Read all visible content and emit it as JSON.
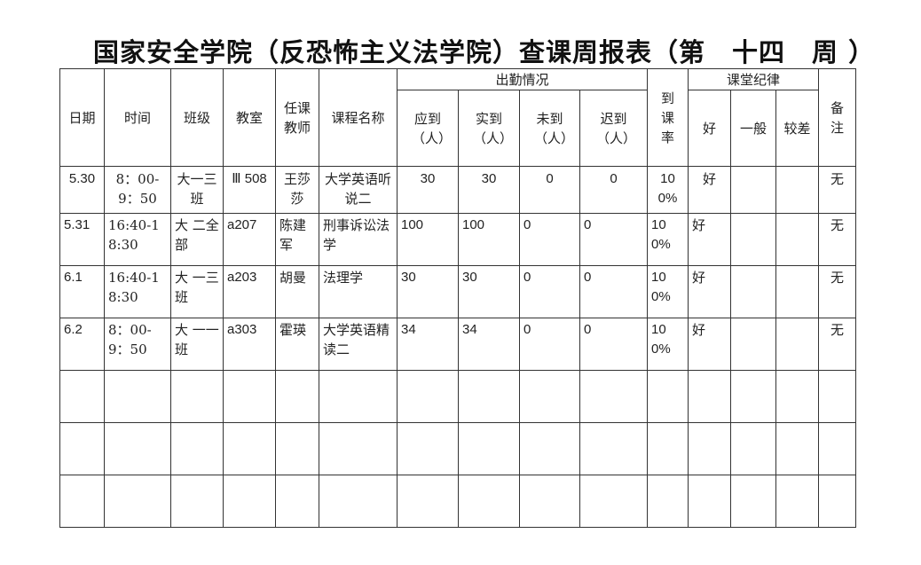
{
  "title": "国家安全学院（反恐怖主义法学院）查课周报表（第　十四　周 ）",
  "headers": {
    "date": "日期",
    "time": "时间",
    "class": "班级",
    "room": "教室",
    "teacher": "任课教师",
    "course": "课程名称",
    "attendance": "出勤情况",
    "expected": "应到（人）",
    "actual": "实到（人）",
    "absent": "未到（人）",
    "late": "迟到（人）",
    "rate": "到课率",
    "discipline": "课堂纪律",
    "good": "好",
    "average": "一般",
    "poor": "较差",
    "remarks": "备注"
  },
  "rows": [
    {
      "date": "5.30",
      "time": "8：00-9：50",
      "class": "大一三班",
      "room": "Ⅲ 508",
      "teacher": "王莎莎",
      "course": "大学英语听说二",
      "expected": "30",
      "actual": "30",
      "absent": "0",
      "late": "0",
      "rate": "100%",
      "good": "好",
      "average": "",
      "poor": "",
      "remarks": "无"
    },
    {
      "date": "5.31",
      "time": "16:40-18:30",
      "class": "大 二全部",
      "room": "a207",
      "teacher": "陈建军",
      "course": "刑事诉讼法学",
      "expected": "100",
      "actual": "100",
      "absent": "0",
      "late": "0",
      "rate": "100%",
      "good": "好",
      "average": "",
      "poor": "",
      "remarks": "无"
    },
    {
      "date": "6.1",
      "time": "16:40-18:30",
      "class": "大 一三班",
      "room": "a203",
      "teacher": "胡曼",
      "course": "法理学",
      "expected": "30",
      "actual": "30",
      "absent": "0",
      "late": "0",
      "rate": "100%",
      "good": "好",
      "average": "",
      "poor": "",
      "remarks": "无"
    },
    {
      "date": "6.2",
      "time": "8：00-9：50",
      "class": "大 一一班",
      "room": "a303",
      "teacher": "霍瑛",
      "course": "大学英语精读二",
      "expected": "34",
      "actual": "34",
      "absent": "0",
      "late": "0",
      "rate": "100%",
      "good": "好",
      "average": "",
      "poor": "",
      "remarks": "无"
    }
  ]
}
